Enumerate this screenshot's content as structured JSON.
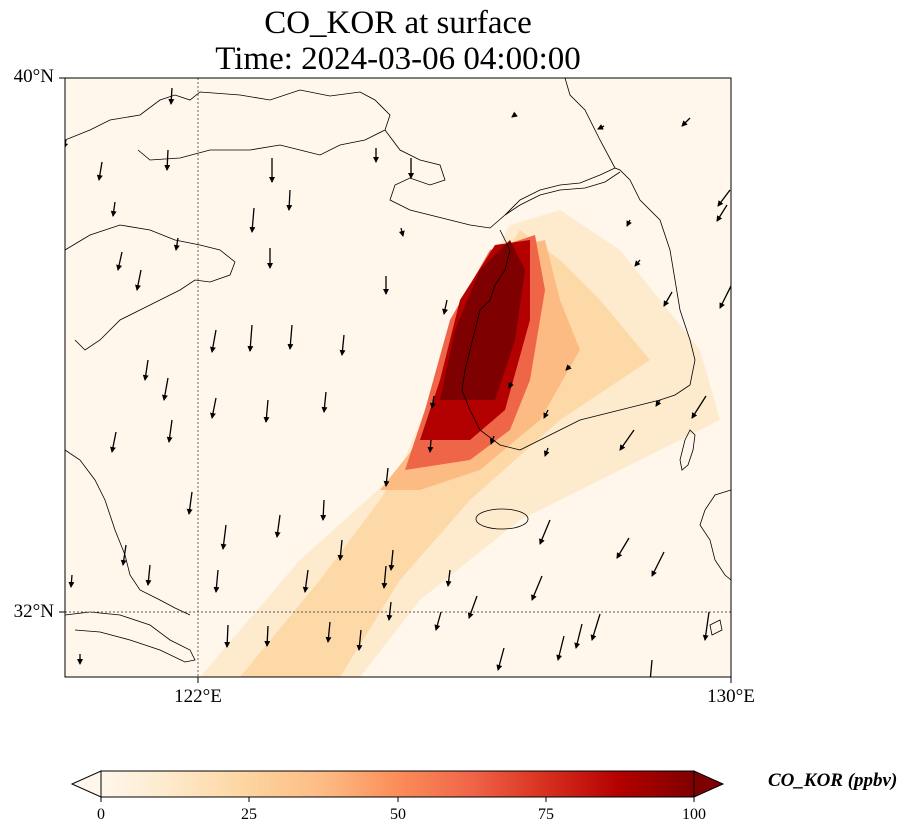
{
  "title": {
    "line1": "CO_KOR at surface",
    "line2": "Time: 2024-03-06 04:00:00"
  },
  "map": {
    "extent": {
      "lon_min": 119.5,
      "lon_max": 130,
      "lat_min": 31,
      "lat_max": 40
    },
    "lat_ticks": [
      {
        "value": 40,
        "label": "40°N"
      },
      {
        "value": 32,
        "label": "32°N"
      }
    ],
    "lon_ticks": [
      {
        "value": 122,
        "label": "122°E"
      },
      {
        "value": 130,
        "label": "130°E"
      }
    ],
    "gridlines": "dotted",
    "vectors": "wind arrows, mostly pointing south to south-southwest"
  },
  "colorbar": {
    "label": "CO_KOR (ppbv)",
    "colormap": "OrRd",
    "min": 0,
    "max": 100,
    "extend": "both",
    "ticks": [
      "0",
      "25",
      "50",
      "75",
      "100"
    ]
  },
  "colors": {
    "c0": "#fff7ec",
    "c25": "#fdd49e",
    "c50": "#fc8d59",
    "c75": "#d7301f",
    "c100": "#7f0000"
  }
}
